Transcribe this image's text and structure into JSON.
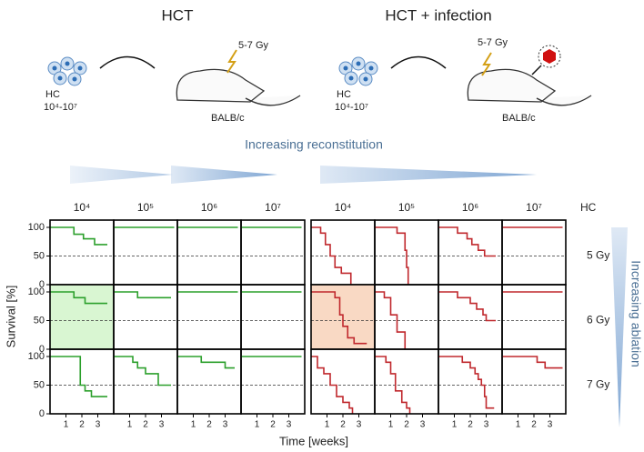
{
  "labels": {
    "hc": "HC",
    "dose_range": "10⁴-10⁷",
    "gy_range": "5-7 Gy",
    "mouse": "BALB/c",
    "reconstitution": "Increasing reconstitution",
    "ablation": "Increasing ablation",
    "y_label": "Survival [%]",
    "x_label": "Time [weeks]",
    "hc_column": "HC",
    "rows": [
      "5 Gy",
      "6 Gy",
      "7 Gy"
    ]
  },
  "chart_data": [
    {
      "type": "step",
      "title": "HCT",
      "color": "#2ca02c",
      "columns": [
        "10⁴",
        "10⁵",
        "10⁶",
        "10⁷"
      ],
      "xlim": [
        0,
        4
      ],
      "xticks": [
        1,
        2,
        3
      ],
      "ylim": [
        0,
        100
      ],
      "yticks": [
        0,
        50,
        100
      ],
      "reference": 50,
      "highlight": {
        "row": 1,
        "col": 0,
        "color": "#d9f6d2"
      },
      "cells": [
        [
          {
            "x": [
              0,
              1.5,
              2.1,
              2.8,
              3.6
            ],
            "values": [
              100,
              88,
              80,
              70,
              70
            ]
          },
          {
            "x": [
              0,
              3.8
            ],
            "values": [
              100,
              100
            ]
          },
          {
            "x": [
              0,
              3.8
            ],
            "values": [
              100,
              100
            ]
          },
          {
            "x": [
              0,
              3.8
            ],
            "values": [
              100,
              100
            ]
          }
        ],
        [
          {
            "x": [
              0,
              1.5,
              2.2,
              3.6
            ],
            "values": [
              100,
              90,
              80,
              80
            ]
          },
          {
            "x": [
              0,
              1.5,
              3.6
            ],
            "values": [
              100,
              90,
              90
            ]
          },
          {
            "x": [
              0,
              3.8
            ],
            "values": [
              100,
              100
            ]
          },
          {
            "x": [
              0,
              3.8
            ],
            "values": [
              100,
              100
            ]
          }
        ],
        [
          {
            "x": [
              0,
              1.9,
              2.2,
              2.6,
              3.6
            ],
            "values": [
              100,
              50,
              40,
              30,
              30
            ]
          },
          {
            "x": [
              0,
              1.2,
              1.5,
              2.0,
              2.8,
              3.6
            ],
            "values": [
              100,
              90,
              80,
              70,
              50,
              50
            ]
          },
          {
            "x": [
              0,
              1.5,
              3.0,
              3.6
            ],
            "values": [
              100,
              90,
              80,
              80
            ]
          },
          {
            "x": [
              0,
              3.8
            ],
            "values": [
              100,
              100
            ]
          }
        ]
      ]
    },
    {
      "type": "step",
      "title": "HCT + infection",
      "color": "#c0282d",
      "columns": [
        "10⁴",
        "10⁵",
        "10⁶",
        "10⁷"
      ],
      "xlim": [
        0,
        4
      ],
      "xticks": [
        1,
        2,
        3
      ],
      "ylim": [
        0,
        100
      ],
      "reference": 50,
      "highlight": {
        "row": 1,
        "col": 0,
        "color": "#f9d9c4"
      },
      "cells": [
        [
          {
            "x": [
              0,
              0.6,
              0.9,
              1.2,
              1.5,
              1.9,
              2.5
            ],
            "values": [
              100,
              90,
              70,
              50,
              30,
              20,
              0
            ]
          },
          {
            "x": [
              0,
              1.4,
              1.9,
              2.0,
              2.1
            ],
            "values": [
              100,
              90,
              60,
              30,
              0
            ]
          },
          {
            "x": [
              0,
              1.2,
              1.8,
              2.1,
              2.5,
              2.9,
              3.6
            ],
            "values": [
              100,
              90,
              80,
              70,
              60,
              50,
              50
            ]
          },
          {
            "x": [
              0,
              3.8
            ],
            "values": [
              100,
              100
            ]
          }
        ],
        [
          {
            "x": [
              0,
              1.5,
              1.8,
              2.0,
              2.3,
              2.7,
              3.5
            ],
            "values": [
              100,
              90,
              60,
              40,
              20,
              10,
              10
            ]
          },
          {
            "x": [
              0,
              0.6,
              1.0,
              1.4,
              1.9
            ],
            "values": [
              100,
              90,
              60,
              30,
              0
            ]
          },
          {
            "x": [
              0,
              1.2,
              2.0,
              2.4,
              2.8,
              3.0,
              3.6
            ],
            "values": [
              100,
              90,
              80,
              70,
              60,
              50,
              50
            ]
          },
          {
            "x": [
              0,
              3.8
            ],
            "values": [
              100,
              100
            ]
          }
        ],
        [
          {
            "x": [
              0,
              0.4,
              0.8,
              1.2,
              1.6,
              2.0,
              2.4,
              2.6
            ],
            "values": [
              100,
              80,
              70,
              50,
              30,
              20,
              10,
              0
            ]
          },
          {
            "x": [
              0,
              0.7,
              1.0,
              1.3,
              1.7,
              2.0,
              2.2
            ],
            "values": [
              100,
              90,
              70,
              40,
              20,
              10,
              0
            ]
          },
          {
            "x": [
              0,
              1.5,
              2.0,
              2.3,
              2.5,
              2.7,
              2.9,
              3.0,
              3.5
            ],
            "values": [
              100,
              90,
              80,
              70,
              60,
              50,
              30,
              10,
              10
            ]
          },
          {
            "x": [
              0,
              2.2,
              2.7,
              3.8
            ],
            "values": [
              100,
              90,
              80,
              80
            ]
          }
        ]
      ]
    }
  ]
}
